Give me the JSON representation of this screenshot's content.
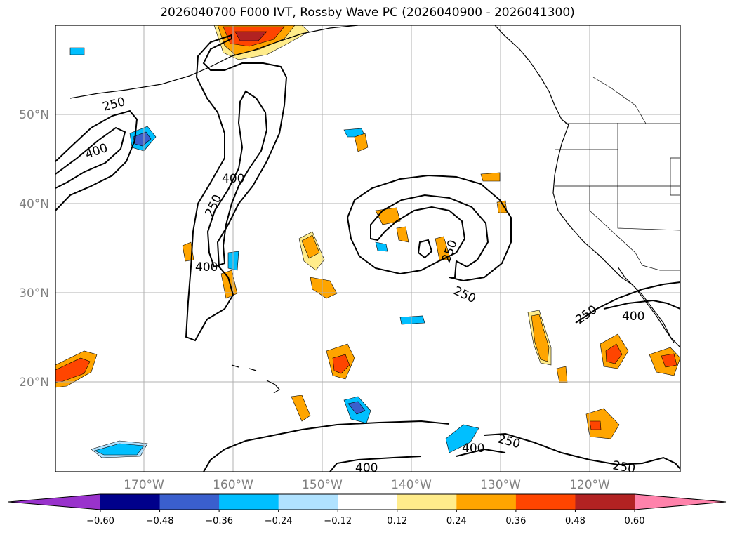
{
  "title": "2026040700 F000 IVT, Rossby Wave PC (2026040900 - 2026041300)",
  "lat_labels": [
    "50°N",
    "40°N",
    "30°N",
    "20°N"
  ],
  "lon_labels": [
    "170°W",
    "160°W",
    "150°W",
    "140°W",
    "130°W",
    "120°W"
  ],
  "contour_levels": [
    "250",
    "400"
  ],
  "contour_labels": [
    "250",
    "400",
    "250",
    "400",
    "250",
    "400",
    "250",
    "400",
    "250",
    "400",
    "400",
    "250",
    "250"
  ],
  "colorbar": {
    "ticks": [
      "−0.60",
      "−0.48",
      "−0.36",
      "−0.24",
      "−0.12",
      "0.12",
      "0.24",
      "0.36",
      "0.48",
      "0.60"
    ],
    "colors": [
      "#9932cc",
      "#00008b",
      "#3a5fcd",
      "#00bfff",
      "#b0e2ff",
      "#ffffff",
      "#ffec8b",
      "#ffa500",
      "#ff4500",
      "#b22222",
      "#ff82ab",
      "#ff82ab"
    ]
  }
}
